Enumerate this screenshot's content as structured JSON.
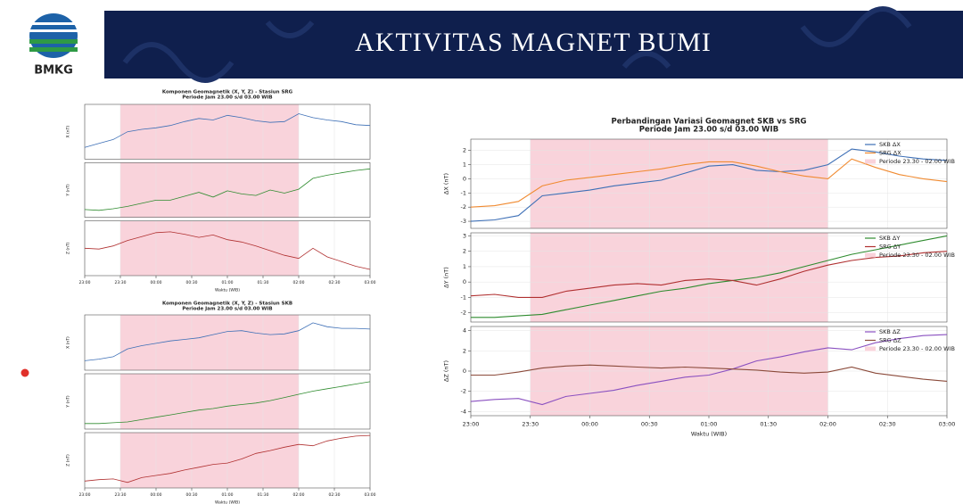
{
  "header": {
    "logo_text": "BMKG",
    "title": "AKTIVITAS MAGNET BUMI"
  },
  "chart_data": [
    {
      "type": "line",
      "title": "Komponen Geomagnetik (X, Y, Z) - Stasiun SRG",
      "subtitle": "Periode Jam 23.00 s/d 03.00 WIB",
      "xlabel": "Waktu (WIB)",
      "grid": true,
      "x": [
        0,
        0.2,
        0.4,
        0.6,
        0.8,
        1,
        1.2,
        1.4,
        1.6,
        1.8,
        2,
        2.2,
        2.4,
        2.6,
        2.8,
        3,
        3.2,
        3.4,
        3.6,
        3.8,
        4
      ],
      "xlim": [
        0,
        4
      ],
      "xticks": [
        {
          "value": 0,
          "label": "23:00"
        },
        {
          "value": 0.5,
          "label": "23:30"
        },
        {
          "value": 1,
          "label": "00:00"
        },
        {
          "value": 1.5,
          "label": "00:30"
        },
        {
          "value": 2,
          "label": "01:00"
        },
        {
          "value": 2.5,
          "label": "01:30"
        },
        {
          "value": 3,
          "label": "02:00"
        },
        {
          "value": 3.5,
          "label": "02:30"
        },
        {
          "value": 4,
          "label": "03:00"
        }
      ],
      "span": [
        0.5,
        3
      ],
      "span_color": "#f9d3db",
      "panels": [
        {
          "ylabel": "X (nT)",
          "ylim": [
            -4,
            3
          ],
          "series": [
            {
              "color": "#3d6fb6",
              "values": [
                -2.5,
                -2.0,
                -1.5,
                -0.5,
                -0.2,
                0.0,
                0.3,
                0.8,
                1.2,
                1.0,
                1.6,
                1.3,
                0.9,
                0.7,
                0.8,
                1.8,
                1.3,
                1.0,
                0.8,
                0.4,
                0.3
              ]
            }
          ]
        },
        {
          "ylabel": "Y (nT)",
          "ylim": [
            -3,
            4
          ],
          "series": [
            {
              "color": "#2e8b2e",
              "values": [
                -2.0,
                -2.1,
                -1.9,
                -1.6,
                -1.2,
                -0.8,
                -0.8,
                -0.3,
                0.2,
                -0.4,
                0.4,
                0.0,
                -0.2,
                0.5,
                0.1,
                0.6,
                2.0,
                2.4,
                2.7,
                3.0,
                3.2
              ]
            }
          ]
        },
        {
          "ylabel": "Z (nT)",
          "ylim": [
            -4,
            3
          ],
          "series": [
            {
              "color": "#b03030",
              "values": [
                -0.5,
                -0.6,
                -0.2,
                0.5,
                1.0,
                1.5,
                1.6,
                1.3,
                0.9,
                1.2,
                0.6,
                0.3,
                -0.2,
                -0.8,
                -1.4,
                -1.8,
                -0.5,
                -1.6,
                -2.2,
                -2.8,
                -3.2
              ]
            }
          ]
        }
      ]
    },
    {
      "type": "line",
      "title": "Komponen Geomagnetik (X, Y, Z) - Stasiun SKB",
      "subtitle": "Periode Jam 23.00 s/d 03.00 WIB",
      "xlabel": "Waktu (WIB)",
      "grid": true,
      "x": [
        0,
        0.2,
        0.4,
        0.6,
        0.8,
        1,
        1.2,
        1.4,
        1.6,
        1.8,
        2,
        2.2,
        2.4,
        2.6,
        2.8,
        3,
        3.2,
        3.4,
        3.6,
        3.8,
        4
      ],
      "xlim": [
        0,
        4
      ],
      "xticks": [
        {
          "value": 0,
          "label": "23:00"
        },
        {
          "value": 0.5,
          "label": "23:30"
        },
        {
          "value": 1,
          "label": "00:00"
        },
        {
          "value": 1.5,
          "label": "00:30"
        },
        {
          "value": 2,
          "label": "01:00"
        },
        {
          "value": 2.5,
          "label": "01:30"
        },
        {
          "value": 3,
          "label": "02:00"
        },
        {
          "value": 3.5,
          "label": "02:30"
        },
        {
          "value": 4,
          "label": "03:00"
        }
      ],
      "span": [
        0.5,
        3
      ],
      "span_color": "#f9d3db",
      "panels": [
        {
          "ylabel": "X (nT)",
          "ylim": [
            -4,
            3
          ],
          "series": [
            {
              "color": "#3d6fb6",
              "values": [
                -2.8,
                -2.6,
                -2.3,
                -1.3,
                -0.9,
                -0.6,
                -0.3,
                -0.1,
                0.1,
                0.5,
                0.9,
                1.0,
                0.7,
                0.5,
                0.6,
                1.0,
                2.0,
                1.5,
                1.3,
                1.3,
                1.2
              ]
            }
          ]
        },
        {
          "ylabel": "Y (nT)",
          "ylim": [
            -3,
            4
          ],
          "series": [
            {
              "color": "#2e8b2e",
              "values": [
                -2.3,
                -2.3,
                -2.2,
                -2.1,
                -1.8,
                -1.5,
                -1.2,
                -0.9,
                -0.6,
                -0.4,
                -0.1,
                0.1,
                0.3,
                0.6,
                1.0,
                1.4,
                1.8,
                2.1,
                2.4,
                2.7,
                3.0
              ]
            }
          ]
        },
        {
          "ylabel": "Z (nT)",
          "ylim": [
            -4,
            4
          ],
          "series": [
            {
              "color": "#b03030",
              "values": [
                -3.0,
                -2.8,
                -2.7,
                -3.2,
                -2.5,
                -2.2,
                -1.9,
                -1.4,
                -1.0,
                -0.6,
                -0.4,
                0.2,
                1.0,
                1.4,
                1.9,
                2.3,
                2.1,
                2.8,
                3.2,
                3.5,
                3.6
              ]
            }
          ]
        }
      ]
    },
    {
      "type": "line",
      "title": "Perbandingan Variasi Geomagnet SKB vs SRG",
      "subtitle": "Periode Jam 23.00 s/d 03.00 WIB",
      "xlabel": "Waktu (WIB)",
      "grid": true,
      "x": [
        0,
        0.2,
        0.4,
        0.6,
        0.8,
        1,
        1.2,
        1.4,
        1.6,
        1.8,
        2,
        2.2,
        2.4,
        2.6,
        2.8,
        3,
        3.2,
        3.4,
        3.6,
        3.8,
        4
      ],
      "xlim": [
        0,
        4
      ],
      "xticks": [
        {
          "value": 0,
          "label": "23:00"
        },
        {
          "value": 0.5,
          "label": "23:30"
        },
        {
          "value": 1,
          "label": "00:00"
        },
        {
          "value": 1.5,
          "label": "00:30"
        },
        {
          "value": 2,
          "label": "01:00"
        },
        {
          "value": 2.5,
          "label": "01:30"
        },
        {
          "value": 3,
          "label": "02:00"
        },
        {
          "value": 3.5,
          "label": "02:30"
        },
        {
          "value": 4,
          "label": "03:00"
        }
      ],
      "span": [
        0.5,
        3
      ],
      "span_color": "#f9d3db",
      "span_label": "Periode 23.30 - 02.00 WIB",
      "panels": [
        {
          "ylabel": "ΔX (nT)",
          "ylim": [
            -3.5,
            2.8
          ],
          "yticks": [
            -3,
            -2,
            -1,
            0,
            1,
            2
          ],
          "series": [
            {
              "name": "SKB ΔX",
              "color": "#3d6fb6",
              "values": [
                -3.0,
                -2.9,
                -2.6,
                -1.2,
                -1.0,
                -0.8,
                -0.5,
                -0.3,
                -0.1,
                0.4,
                0.9,
                1.0,
                0.6,
                0.5,
                0.6,
                1.0,
                2.1,
                1.9,
                1.6,
                1.4,
                1.3
              ]
            },
            {
              "name": "SRG ΔX",
              "color": "#f08a30",
              "values": [
                -2.0,
                -1.9,
                -1.6,
                -0.5,
                -0.1,
                0.1,
                0.3,
                0.5,
                0.7,
                1.0,
                1.2,
                1.2,
                0.9,
                0.5,
                0.2,
                0.0,
                1.4,
                0.8,
                0.3,
                0.0,
                -0.2
              ]
            }
          ]
        },
        {
          "ylabel": "ΔY (nT)",
          "ylim": [
            -2.6,
            3.2
          ],
          "yticks": [
            -2,
            -1,
            0,
            1,
            2,
            3
          ],
          "series": [
            {
              "name": "SKB ΔY",
              "color": "#2e8b2e",
              "values": [
                -2.3,
                -2.3,
                -2.2,
                -2.1,
                -1.8,
                -1.5,
                -1.2,
                -0.9,
                -0.6,
                -0.4,
                -0.1,
                0.1,
                0.3,
                0.6,
                1.0,
                1.4,
                1.8,
                2.1,
                2.4,
                2.7,
                3.0
              ]
            },
            {
              "name": "SRG ΔY",
              "color": "#b03030",
              "values": [
                -0.9,
                -0.8,
                -1.0,
                -1.0,
                -0.6,
                -0.4,
                -0.2,
                -0.1,
                -0.2,
                0.1,
                0.2,
                0.1,
                -0.2,
                0.2,
                0.7,
                1.1,
                1.4,
                1.6,
                1.7,
                1.9,
                2.0
              ]
            }
          ]
        },
        {
          "ylabel": "ΔZ (nT)",
          "ylim": [
            -4.4,
            4.4
          ],
          "yticks": [
            -4,
            -2,
            0,
            2,
            4
          ],
          "series": [
            {
              "name": "SKB ΔZ",
              "color": "#8a50c0",
              "values": [
                -3.0,
                -2.8,
                -2.7,
                -3.3,
                -2.5,
                -2.2,
                -1.9,
                -1.4,
                -1.0,
                -0.6,
                -0.4,
                0.2,
                1.0,
                1.4,
                1.9,
                2.3,
                2.1,
                2.8,
                3.2,
                3.5,
                3.6
              ]
            },
            {
              "name": "SRG ΔZ",
              "color": "#8b4a3a",
              "values": [
                -0.4,
                -0.4,
                -0.1,
                0.3,
                0.5,
                0.6,
                0.5,
                0.4,
                0.3,
                0.4,
                0.3,
                0.2,
                0.1,
                -0.1,
                -0.2,
                -0.1,
                0.4,
                -0.2,
                -0.5,
                -0.8,
                -1.0
              ]
            }
          ]
        }
      ]
    }
  ]
}
